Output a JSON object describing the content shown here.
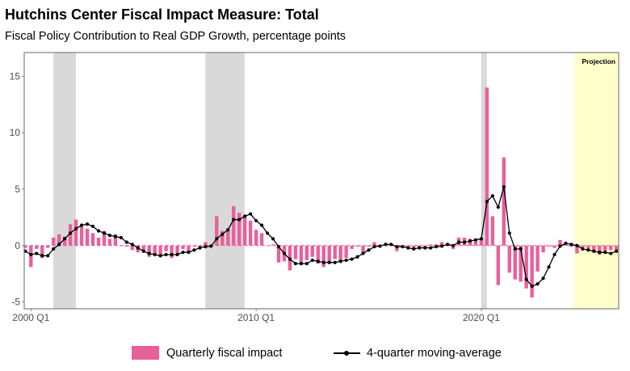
{
  "chart_data": {
    "type": "bar+line",
    "title": "Hutchins Center Fiscal Impact Measure: Total",
    "subtitle": "Fiscal Policy Contribution to Real GDP Growth, percentage points",
    "xlabel": "",
    "ylabel": "",
    "x_start": "1999 Q4",
    "x_ticks": [
      "2000 Q1",
      "2010 Q1",
      "2020 Q1"
    ],
    "y_ticks": [
      -5,
      0,
      5,
      10,
      15
    ],
    "ylim": [
      -5.6,
      17.1
    ],
    "grid": false,
    "series": [
      {
        "name": "Quarterly fiscal impact",
        "kind": "bar",
        "color": "#E8609A",
        "values": [
          -0.2,
          -1.9,
          -0.3,
          -1.1,
          -0.2,
          0.7,
          1.0,
          0.8,
          1.9,
          2.3,
          1.7,
          1.5,
          1.1,
          0.7,
          1.3,
          0.6,
          1.0,
          -0.05,
          -0.1,
          -0.4,
          -0.6,
          -0.5,
          -1.0,
          -0.8,
          -0.8,
          -0.5,
          -1.1,
          -0.7,
          -0.3,
          -0.6,
          -0.1,
          -0.1,
          0.3,
          0.1,
          2.6,
          1.3,
          1.4,
          3.5,
          2.9,
          2.7,
          2.2,
          1.4,
          1.1,
          -0.05,
          0.1,
          -1.5,
          -1.4,
          -2.2,
          -1.2,
          -1.5,
          -1.3,
          -1.0,
          -1.6,
          -1.9,
          -1.5,
          -1.2,
          -1.4,
          -1.1,
          -0.3,
          -0.1,
          -0.6,
          -0.1,
          0.3,
          0.05,
          0.05,
          0.0,
          -0.5,
          -0.1,
          -0.1,
          -0.3,
          -0.2,
          -0.1,
          0.1,
          0.1,
          0.3,
          0.2,
          -0.3,
          0.7,
          0.7,
          0.6,
          0.6,
          0.6,
          14.0,
          2.6,
          -3.5,
          7.8,
          -2.4,
          -3.0,
          -3.2,
          -3.8,
          -4.6,
          -2.3,
          -0.6,
          -0.1,
          -0.2,
          0.5,
          0.1,
          -0.1,
          -0.7,
          -0.3,
          -0.4,
          -0.6,
          -0.8,
          -0.5,
          -0.4,
          -0.4
        ]
      },
      {
        "name": "4-quarter moving-average",
        "kind": "line",
        "color": "#000000",
        "values": [
          -0.5,
          -0.8,
          -0.7,
          -0.9,
          -0.9,
          -0.3,
          0.1,
          0.6,
          1.1,
          1.5,
          1.8,
          1.9,
          1.7,
          1.3,
          1.1,
          0.9,
          0.8,
          0.7,
          0.3,
          0.1,
          -0.2,
          -0.5,
          -0.7,
          -0.8,
          -0.9,
          -0.8,
          -0.8,
          -0.8,
          -0.6,
          -0.6,
          -0.4,
          -0.2,
          -0.1,
          -0.05,
          0.6,
          1.0,
          1.4,
          2.3,
          2.3,
          2.6,
          2.8,
          2.2,
          1.8,
          1.1,
          0.6,
          -0.1,
          -0.7,
          -1.2,
          -1.6,
          -1.6,
          -1.6,
          -1.3,
          -1.4,
          -1.5,
          -1.5,
          -1.5,
          -1.4,
          -1.3,
          -1.2,
          -1.0,
          -0.7,
          -0.4,
          -0.1,
          -0.05,
          0.1,
          0.1,
          -0.1,
          -0.1,
          -0.2,
          -0.3,
          -0.2,
          -0.2,
          -0.2,
          -0.1,
          -0.05,
          0.1,
          0.0,
          0.3,
          0.3,
          0.4,
          0.5,
          0.6,
          3.9,
          4.4,
          3.4,
          5.2,
          1.1,
          -0.3,
          -0.3,
          -3.0,
          -3.6,
          -3.4,
          -2.9,
          -1.9,
          -0.8,
          -0.05,
          0.2,
          0.1,
          0.0,
          -0.3,
          -0.4,
          -0.5,
          -0.6,
          -0.6,
          -0.7,
          -0.5
        ]
      }
    ],
    "recessions": [
      {
        "start": "2001 Q1",
        "end": "2002 Q1"
      },
      {
        "start": "2007 Q4",
        "end": "2009 Q3"
      },
      {
        "start": "2020 Q1",
        "end": "2020 Q2"
      }
    ],
    "projection": {
      "label": "Projection",
      "start": "2024 Q2",
      "color": "#FFFFCC"
    },
    "legend": {
      "position": "bottom",
      "items": [
        "Quarterly fiscal impact",
        "4-quarter moving-average"
      ]
    }
  }
}
